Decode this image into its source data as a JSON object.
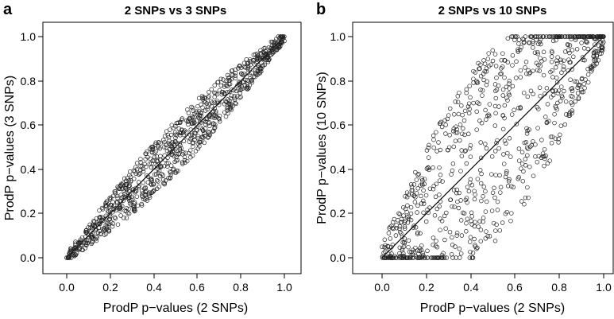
{
  "chart_data": [
    {
      "type": "scatter",
      "panel_label": "a",
      "title": "2 SNPs vs 3 SNPs",
      "xlabel": "ProdP p−values (2 SNPs)",
      "ylabel": "ProdP p−values (3 SNPs)",
      "xlim": [
        0,
        1
      ],
      "ylim": [
        0,
        1
      ],
      "xticks": [
        "0.0",
        "0.2",
        "0.4",
        "0.6",
        "0.8",
        "1.0"
      ],
      "yticks": [
        "0.0",
        "0.2",
        "0.4",
        "0.6",
        "0.8",
        "1.0"
      ],
      "reference_line": "y = x",
      "n_points": 900,
      "spread": 0.1
    },
    {
      "type": "scatter",
      "panel_label": "b",
      "title": "2 SNPs vs 10 SNPs",
      "xlabel": "ProdP p−values (2 SNPs)",
      "ylabel": "ProdP p−values (10 SNPs)",
      "xlim": [
        0,
        1
      ],
      "ylim": [
        0,
        1
      ],
      "xticks": [
        "0.0",
        "0.2",
        "0.4",
        "0.6",
        "0.8",
        "1.0"
      ],
      "yticks": [
        "0.0",
        "0.2",
        "0.4",
        "0.6",
        "0.8",
        "1.0"
      ],
      "reference_line": "y = x",
      "n_points": 900,
      "spread": 0.32
    }
  ]
}
